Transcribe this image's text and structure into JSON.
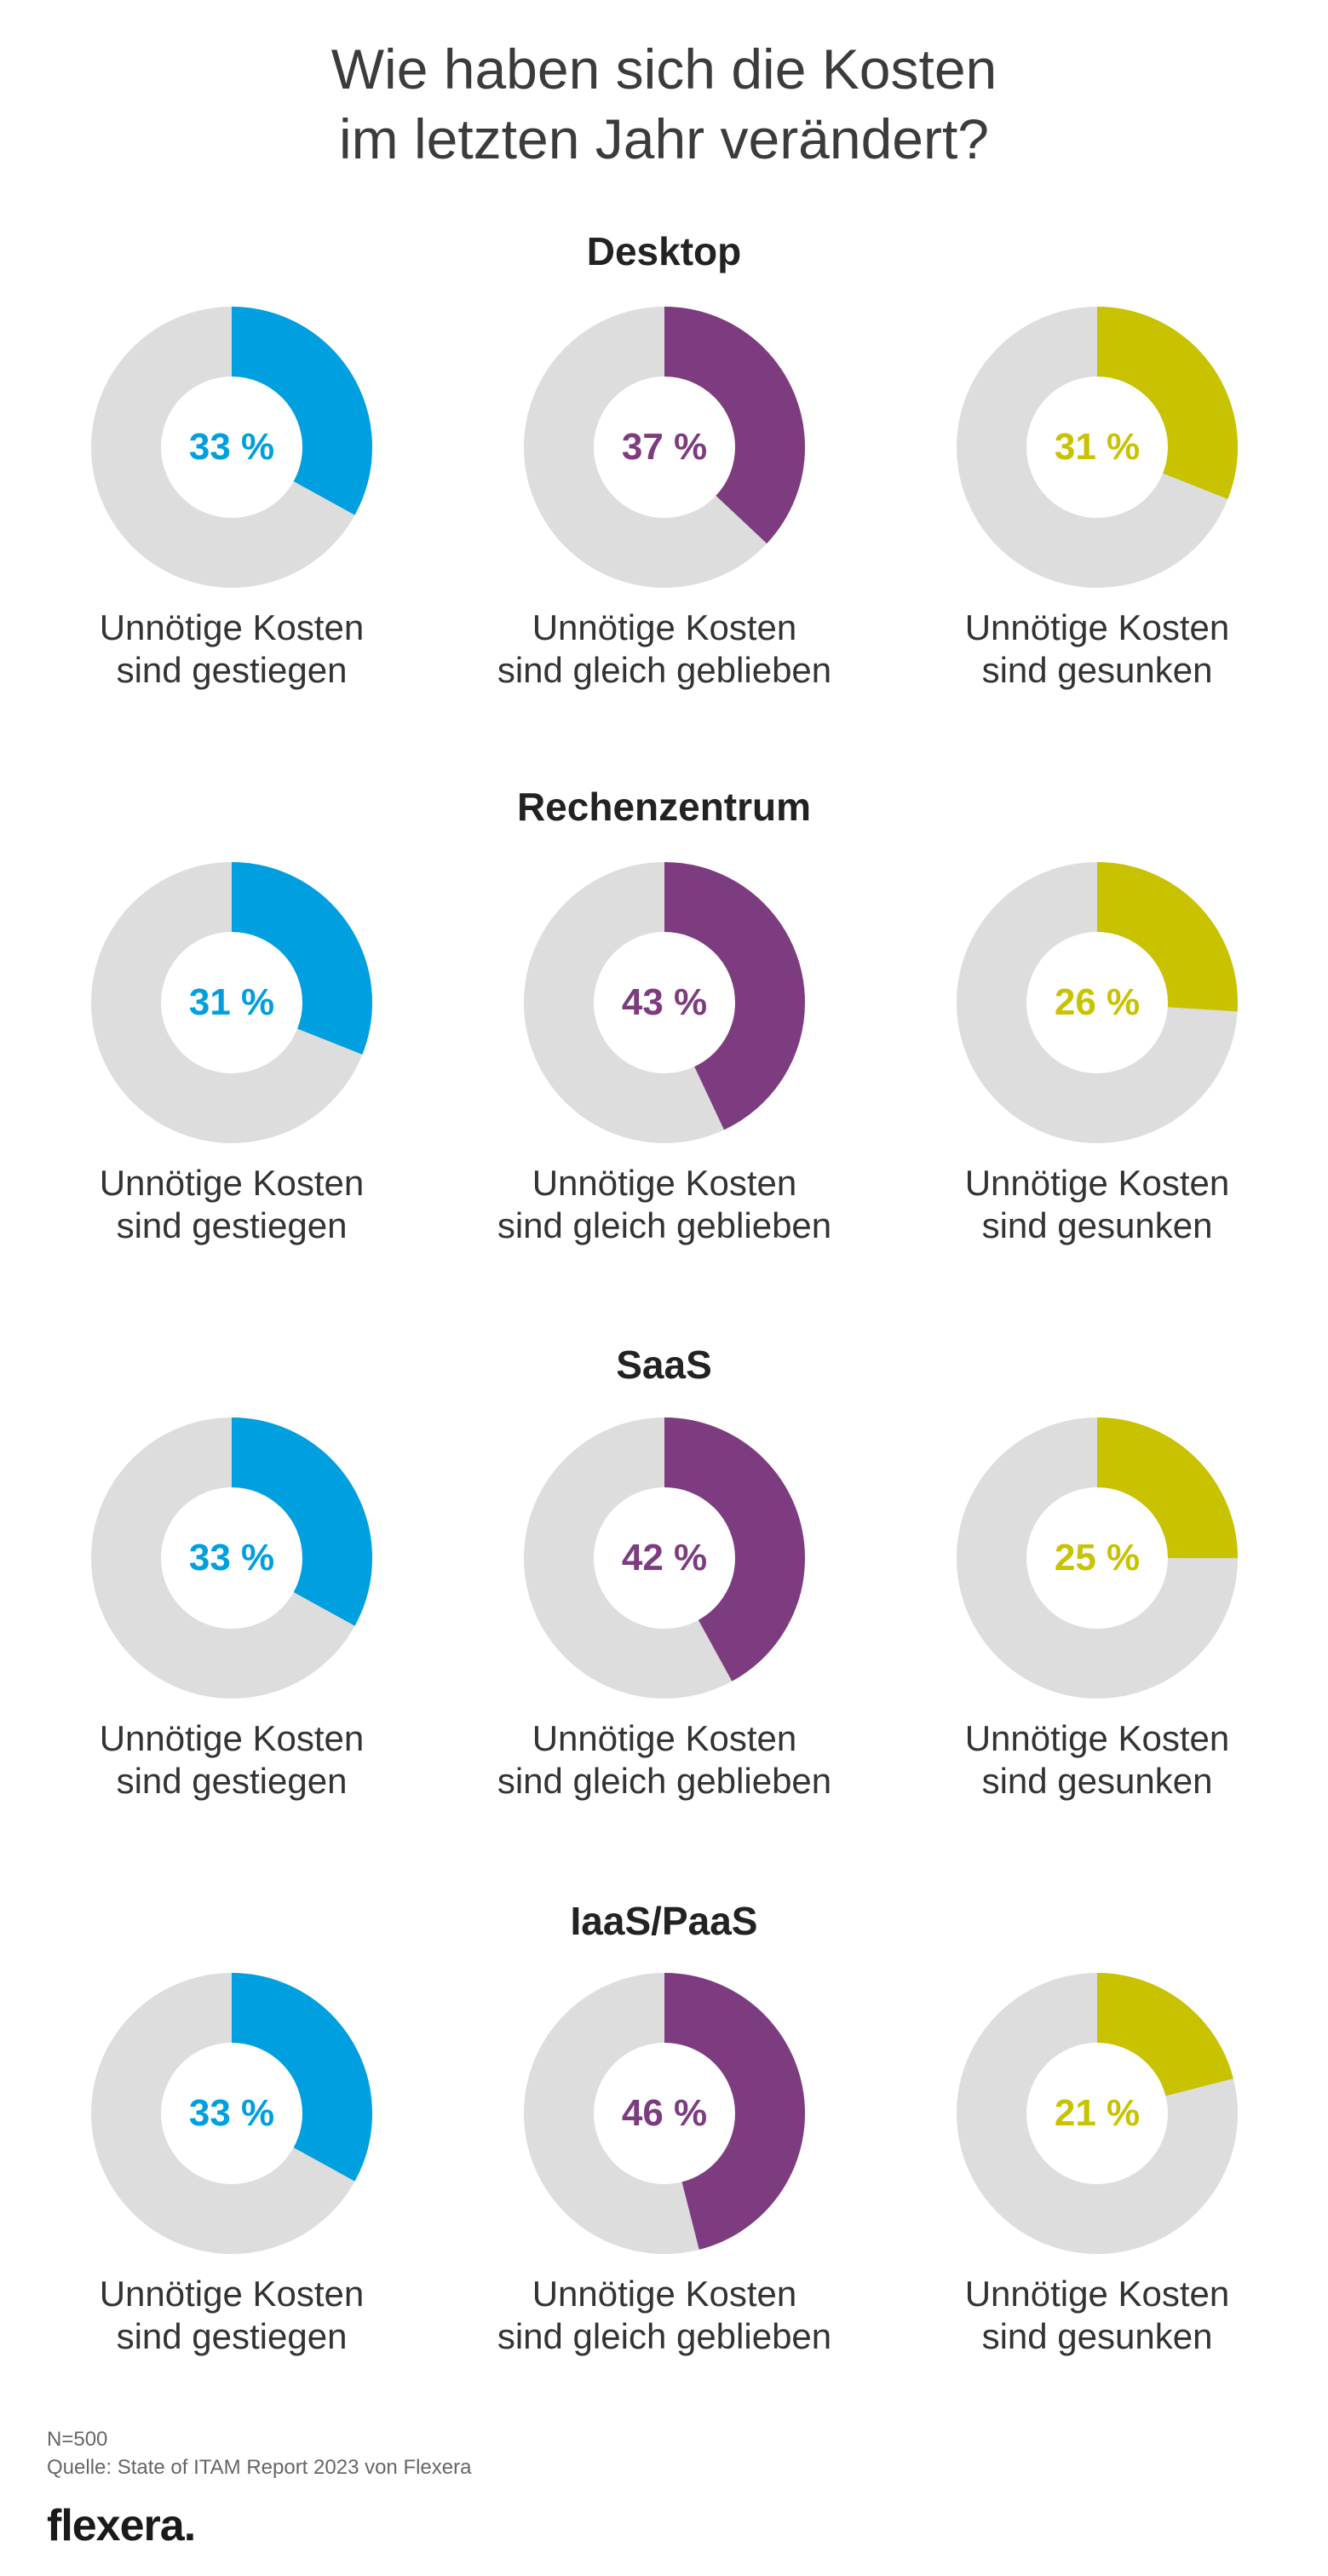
{
  "title": {
    "line1": "Wie haben sich die Kosten",
    "line2": "im letzten Jahr verändert?"
  },
  "colors": {
    "increased": "#009fdf",
    "same": "#7d3c7f",
    "decreased": "#c9c200",
    "track": "#dddddd"
  },
  "labels": {
    "increased": {
      "line1": "Unnötige Kosten",
      "line2": "sind gestiegen"
    },
    "same": {
      "line1": "Unnötige Kosten",
      "line2": "sind gleich geblieben"
    },
    "decreased": {
      "line1": "Unnötige Kosten",
      "line2": "sind gesunken"
    }
  },
  "chart_data": {
    "type": "pie",
    "subtype": "donut",
    "title": "Wie haben sich die Kosten im letzten Jahr verändert?",
    "unit": "%",
    "categories": [
      "Unnötige Kosten sind gestiegen",
      "Unnötige Kosten sind gleich geblieben",
      "Unnötige Kosten sind gesunken"
    ],
    "groups": [
      {
        "name": "Desktop",
        "values": [
          33,
          37,
          31
        ],
        "texts": [
          "33 %",
          "37 %",
          "31 %"
        ]
      },
      {
        "name": "Rechenzentrum",
        "values": [
          31,
          43,
          26
        ],
        "texts": [
          "31 %",
          "43 %",
          "26 %"
        ]
      },
      {
        "name": "SaaS",
        "values": [
          33,
          42,
          25
        ],
        "texts": [
          "33 %",
          "42 %",
          "25 %"
        ]
      },
      {
        "name": "IaaS/PaaS",
        "values": [
          33,
          46,
          21
        ],
        "texts": [
          "33 %",
          "46 %",
          "21 %"
        ]
      }
    ]
  },
  "footer": {
    "n": "N=500",
    "source": "Quelle: State of ITAM Report 2023 von Flexera"
  },
  "logo": {
    "text": "flexera",
    "dot": "."
  }
}
